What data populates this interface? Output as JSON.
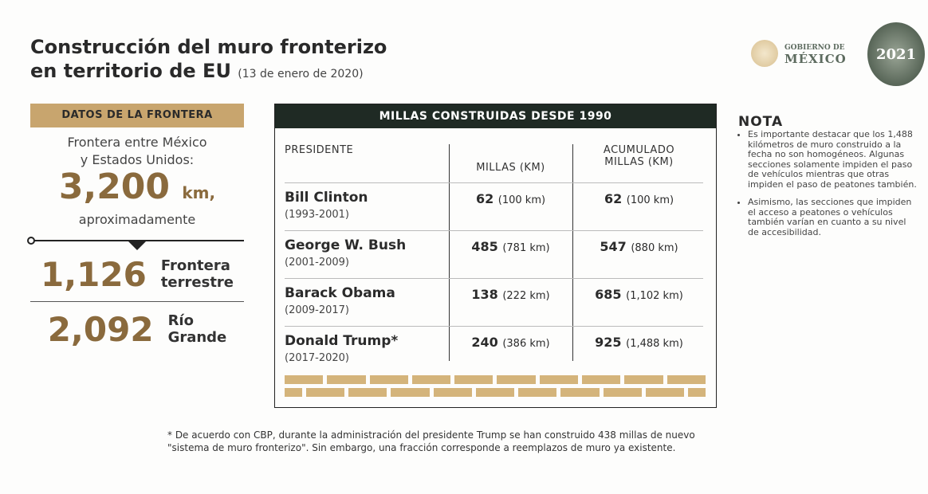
{
  "title": {
    "line1": "Construcción del muro fronterizo",
    "line2": "en territorio de EU",
    "date": "(13 de enero de 2020)"
  },
  "logos": {
    "gob_small": "GOBIERNO DE",
    "gob_big": "MÉXICO",
    "year": "2021"
  },
  "left": {
    "header": "DATOS DE LA FRONTERA",
    "desc1": "Frontera entre México",
    "desc2": "y Estados Unidos:",
    "total": "3,200",
    "unit": "km,",
    "approx": "aproximadamente",
    "stats": [
      {
        "value": "1,126",
        "l1": "Frontera",
        "l2": "terrestre"
      },
      {
        "value": "2,092",
        "l1": "Río",
        "l2": "Grande"
      }
    ]
  },
  "table": {
    "header": "MILLAS CONSTRUIDAS DESDE 1990",
    "col_president": "PRESIDENTE",
    "col_miles": "MILLAS (KM)",
    "col_cum1": "ACUMULADO",
    "col_cum2": "MILLAS (KM)",
    "rows": [
      {
        "name": "Bill Clinton",
        "years": "(1993-2001)",
        "miles": "62",
        "km": "(100 km)",
        "cum": "62",
        "cum_km": "(100 km)"
      },
      {
        "name": "George W. Bush",
        "years": "(2001-2009)",
        "miles": "485",
        "km": "(781 km)",
        "cum": "547",
        "cum_km": "(880 km)"
      },
      {
        "name": "Barack Obama",
        "years": "(2009-2017)",
        "miles": "138",
        "km": "(222 km)",
        "cum": "685",
        "cum_km": "(1,102 km)"
      },
      {
        "name": "Donald Trump*",
        "years": "(2017-2020)",
        "miles": "240",
        "km": "(386 km)",
        "cum": "925",
        "cum_km": "(1,488 km)"
      }
    ]
  },
  "nota": {
    "title": "NOTA",
    "items": [
      "Es importante destacar que los 1,488 kilómetros de muro construido a la fecha no son homogéneos. Algunas secciones solamente impiden el paso de vehículos mientras que otras impiden el paso de peatones también.",
      "Asimismo, las secciones que impiden el acceso a peatones o vehículos también varían en cuanto a su nivel de accesibilidad."
    ]
  },
  "footnote": "* De acuerdo con CBP, durante la administración del presidente Trump se han construido 438 millas de nuevo \"sistema de muro fronterizo\". Sin embargo, una fracción corresponde a reemplazos de muro ya existente.",
  "colors": {
    "gold": "#c8a56e",
    "brown": "#8a6a3d",
    "dark_green": "#1f2a24"
  }
}
